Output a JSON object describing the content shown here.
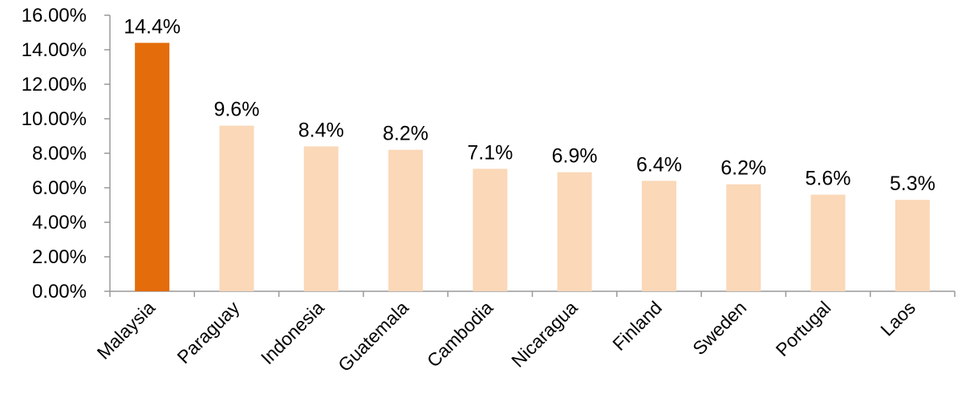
{
  "chart_data": {
    "type": "bar",
    "title": "",
    "xlabel": "",
    "ylabel": "",
    "ylim": [
      0,
      16
    ],
    "y_ticks": [
      "0.00%",
      "2.00%",
      "4.00%",
      "6.00%",
      "8.00%",
      "10.00%",
      "12.00%",
      "14.00%",
      "16.00%"
    ],
    "categories": [
      "Malaysia",
      "Paraguay",
      "Indonesia",
      "Guatemala",
      "Cambodia",
      "Nicaragua",
      "Finland",
      "Sweden",
      "Portugal",
      "Laos"
    ],
    "values": [
      14.4,
      9.6,
      8.4,
      8.2,
      7.1,
      6.9,
      6.4,
      6.2,
      5.6,
      5.3
    ],
    "data_labels": [
      "14.4%",
      "9.6%",
      "8.4%",
      "8.2%",
      "7.1%",
      "6.9%",
      "6.4%",
      "6.2%",
      "5.6%",
      "5.3%"
    ],
    "grid": false,
    "legend": "none",
    "colors": {
      "highlight": "#e46c0a",
      "bar": "#fad8b8",
      "axis": "#999999"
    },
    "highlight_index": 0
  }
}
